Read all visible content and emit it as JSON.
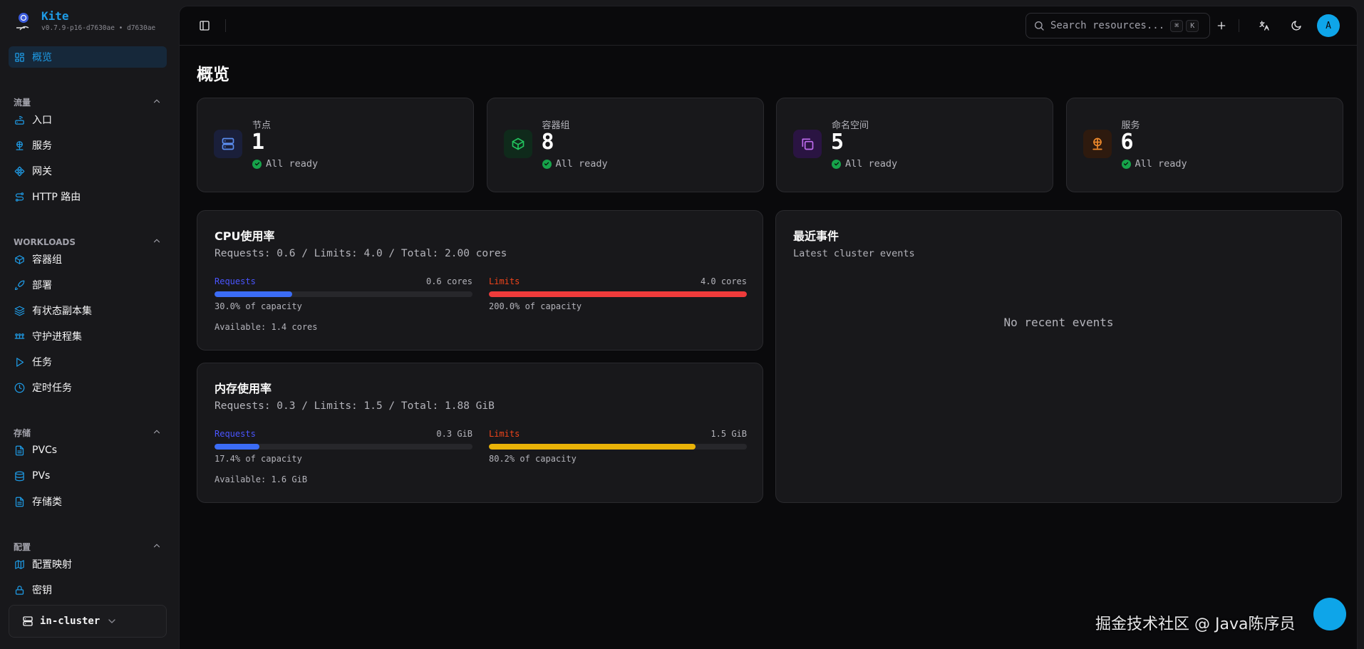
{
  "app": {
    "name": "Kite",
    "version": "v0.7.9-p16-d7630ae • d7630ae"
  },
  "colors": {
    "accent": "#1e9be6",
    "requests": "#3b6cf6",
    "requests_label": "#4a55ff",
    "limits_label": "#f0441a",
    "cpu_limits": "#ef3b3b",
    "mem_limits": "#eab308",
    "ready": "#16a34a"
  },
  "sidebar": {
    "overview": {
      "label": "概览",
      "icon": "grid-icon"
    },
    "sections": [
      {
        "title": "流量",
        "items": [
          {
            "label": "入口",
            "icon": "router-icon"
          },
          {
            "label": "服务",
            "icon": "network-icon"
          },
          {
            "label": "网关",
            "icon": "gateway-icon"
          },
          {
            "label": "HTTP 路由",
            "icon": "route-icon"
          }
        ]
      },
      {
        "title": "WORKLOADS",
        "items": [
          {
            "label": "容器组",
            "icon": "box-icon"
          },
          {
            "label": "部署",
            "icon": "rocket-icon"
          },
          {
            "label": "有状态副本集",
            "icon": "layers-icon"
          },
          {
            "label": "守护进程集",
            "icon": "daemonset-icon"
          },
          {
            "label": "任务",
            "icon": "play-icon"
          },
          {
            "label": "定时任务",
            "icon": "clock-icon"
          }
        ]
      },
      {
        "title": "存储",
        "items": [
          {
            "label": "PVCs",
            "icon": "file-icon"
          },
          {
            "label": "PVs",
            "icon": "database-icon"
          },
          {
            "label": "存储类",
            "icon": "file-icon"
          }
        ]
      },
      {
        "title": "配置",
        "items": [
          {
            "label": "配置映射",
            "icon": "map-icon"
          },
          {
            "label": "密钥",
            "icon": "lock-icon"
          }
        ]
      }
    ],
    "cluster": "in-cluster"
  },
  "header": {
    "search_placeholder": "Search resources...",
    "kbd1": "⌘",
    "kbd2": "K",
    "avatar": "A"
  },
  "page": {
    "title": "概览"
  },
  "stats": [
    {
      "label": "节点",
      "value": "1",
      "status": "All ready",
      "icon": "server-icon",
      "color": "#5b8def",
      "bg": "#1a1f3a"
    },
    {
      "label": "容器组",
      "value": "8",
      "status": "All ready",
      "icon": "box-icon",
      "color": "#22c55e",
      "bg": "#0f2a1b"
    },
    {
      "label": "命名空间",
      "value": "5",
      "status": "All ready",
      "icon": "copy-icon",
      "color": "#c06cf0",
      "bg": "#2a1442"
    },
    {
      "label": "服务",
      "value": "6",
      "status": "All ready",
      "icon": "network-icon",
      "color": "#f08a2c",
      "bg": "#2e1a0e"
    }
  ],
  "cpu": {
    "title": "CPU使用率",
    "summary": "Requests: 0.6 / Limits: 4.0 / Total: 2.00 cores",
    "requests": {
      "label": "Requests",
      "value": "0.6 cores",
      "percent_text": "30.0% of capacity",
      "percent": 30.0
    },
    "limits": {
      "label": "Limits",
      "value": "4.0 cores",
      "percent_text": "200.0% of capacity",
      "percent": 200.0
    },
    "available": "Available: 1.4 cores"
  },
  "memory": {
    "title": "内存使用率",
    "summary": "Requests: 0.3 / Limits: 1.5 / Total: 1.88 GiB",
    "requests": {
      "label": "Requests",
      "value": "0.3 GiB",
      "percent_text": "17.4% of capacity",
      "percent": 17.4
    },
    "limits": {
      "label": "Limits",
      "value": "1.5 GiB",
      "percent_text": "80.2% of capacity",
      "percent": 80.2
    },
    "available": "Available: 1.6 GiB"
  },
  "events": {
    "title": "最近事件",
    "subtitle": "Latest cluster events",
    "empty": "No recent events"
  },
  "watermark": "掘金技术社区 @ Java陈序员"
}
